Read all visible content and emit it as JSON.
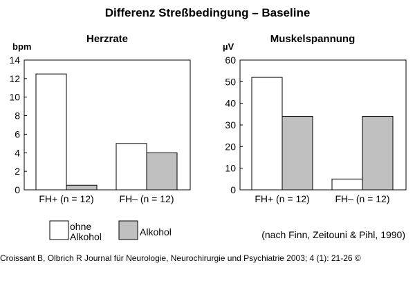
{
  "figure": {
    "title": "Differenz Streßbedingung – Baseline",
    "note": "(nach Finn, Zeitouni & Pihl, 1990)",
    "caption": "Croissant B, Olbrich R Journal für Neurologie, Neurochirurgie und Psychiatrie 2003; 4 (1): 21-26 ©"
  },
  "legend": {
    "entries": [
      {
        "label_line1": "ohne",
        "label_line2": "Alkohol",
        "color": "#ffffff"
      },
      {
        "label_line1": "Alkohol",
        "label_line2": "",
        "color": "#c0c0c0"
      }
    ]
  },
  "chart_data": [
    {
      "type": "bar",
      "title": "Herzrate",
      "ylabel": "bpm",
      "ylim": [
        0,
        14
      ],
      "yticks": [
        0,
        2,
        4,
        6,
        8,
        10,
        12,
        14
      ],
      "categories": [
        "FH+ (n = 12)",
        "FH– (n = 12)"
      ],
      "series": [
        {
          "name": "ohne Alkohol",
          "values": [
            12.5,
            5.0
          ],
          "color": "#ffffff"
        },
        {
          "name": "Alkohol",
          "values": [
            0.5,
            4.0
          ],
          "color": "#c0c0c0"
        }
      ]
    },
    {
      "type": "bar",
      "title": "Muskelspannung",
      "ylabel": "µV",
      "ylim": [
        0,
        60
      ],
      "yticks": [
        0,
        10,
        20,
        30,
        40,
        50,
        60
      ],
      "categories": [
        "FH+ (n = 12)",
        "FH– (n = 12)"
      ],
      "series": [
        {
          "name": "ohne Alkohol",
          "values": [
            52,
            5
          ],
          "color": "#ffffff"
        },
        {
          "name": "Alkohol",
          "values": [
            34,
            34
          ],
          "color": "#c0c0c0"
        }
      ]
    }
  ]
}
